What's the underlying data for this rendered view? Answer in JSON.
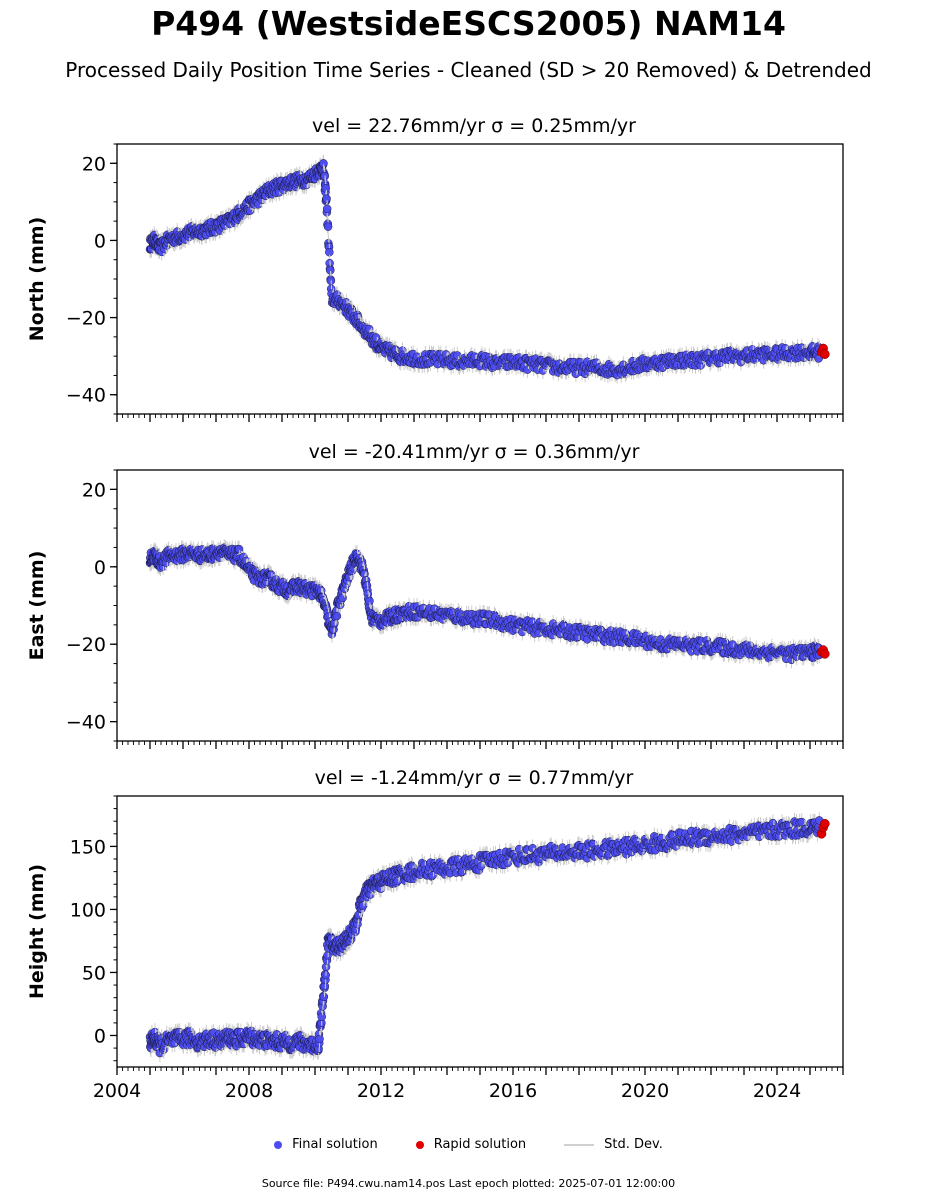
{
  "figure": {
    "title": "P494 (WestsideESCS2005) NAM14",
    "subtitle": "Processed Daily Position Time Series - Cleaned (SD > 20 Removed) & Detrended",
    "footer": "Source file: P494.cwu.nam14.pos  Last epoch plotted: 2025-07-01 12:00:00"
  },
  "legend": {
    "final_label": "Final solution",
    "rapid_label": "Rapid solution",
    "std_label": "Std. Dev."
  },
  "colors": {
    "final": "#4b4bf0",
    "final_edge": "#1a1a40",
    "rapid": "#e00000",
    "std": "#cccccc"
  },
  "chart_data": [
    {
      "type": "scatter",
      "panel": "north",
      "title": "vel = 22.76mm/yr   σ = 0.25mm/yr",
      "vel_text": "vel = 22.76mm/yr",
      "sigma_text": "σ = 0.25mm/yr",
      "ylabel": "North (mm)",
      "xlabel": "",
      "xlim": [
        2004.0,
        2026.0
      ],
      "ylim": [
        -45,
        25
      ],
      "yticks": [
        20,
        0,
        -20,
        -40
      ],
      "ytick_labels": [
        "20",
        "0",
        "−20",
        "−40"
      ],
      "xticks": [
        2004,
        2008,
        2012,
        2016,
        2020,
        2024
      ],
      "xtick_labels": [],
      "series": [
        {
          "name": "Final solution",
          "x": [
            2005.0,
            2005.15,
            2005.3,
            2005.6,
            2005.9,
            2006.2,
            2006.5,
            2006.8,
            2007.1,
            2007.4,
            2007.7,
            2008.0,
            2008.3,
            2008.6,
            2008.9,
            2009.2,
            2009.5,
            2009.8,
            2010.1,
            2010.25,
            2010.35,
            2010.5,
            2010.8,
            2011.1,
            2011.4,
            2011.7,
            2012.0,
            2012.3,
            2012.6,
            2013.0,
            2013.5,
            2014.0,
            2014.5,
            2015.0,
            2015.5,
            2016.0,
            2016.5,
            2017.0,
            2017.5,
            2018.0,
            2018.5,
            2019.0,
            2019.5,
            2020.0,
            2020.5,
            2021.0,
            2021.5,
            2022.0,
            2022.5,
            2023.0,
            2023.5,
            2024.0,
            2024.5,
            2025.0,
            2025.3
          ],
          "y": [
            -1,
            0,
            -2,
            0.5,
            1,
            2,
            2.5,
            3,
            4,
            5,
            7,
            9,
            11,
            13,
            14,
            15,
            15.5,
            16,
            18,
            19,
            10,
            -15,
            -16,
            -19,
            -22,
            -25,
            -28,
            -29,
            -30,
            -30.5,
            -31,
            -31,
            -31.5,
            -31,
            -32,
            -31.5,
            -32,
            -32.5,
            -33,
            -33,
            -33,
            -33.5,
            -33,
            -32,
            -31.5,
            -31,
            -31,
            -30.5,
            -30,
            -30,
            -29.5,
            -29.5,
            -29,
            -29,
            -29
          ]
        },
        {
          "name": "Rapid solution",
          "x": [
            2025.35,
            2025.4,
            2025.45
          ],
          "y": [
            -29,
            -28,
            -29.5
          ]
        }
      ]
    },
    {
      "type": "scatter",
      "panel": "east",
      "title": "vel = -20.41mm/yr   σ = 0.36mm/yr",
      "vel_text": "vel = -20.41mm/yr",
      "sigma_text": "σ = 0.36mm/yr",
      "ylabel": "East (mm)",
      "xlabel": "",
      "xlim": [
        2004.0,
        2026.0
      ],
      "ylim": [
        -45,
        25
      ],
      "yticks": [
        20,
        0,
        -20,
        -40
      ],
      "ytick_labels": [
        "20",
        "0",
        "−20",
        "−40"
      ],
      "xticks": [
        2004,
        2008,
        2012,
        2016,
        2020,
        2024
      ],
      "xtick_labels": [],
      "series": [
        {
          "name": "Final solution",
          "x": [
            2005.0,
            2005.15,
            2005.3,
            2005.6,
            2005.9,
            2006.2,
            2006.5,
            2006.8,
            2007.1,
            2007.4,
            2007.7,
            2008.0,
            2008.3,
            2008.6,
            2008.9,
            2009.2,
            2009.5,
            2009.8,
            2010.1,
            2010.3,
            2010.5,
            2010.7,
            2010.9,
            2011.1,
            2011.3,
            2011.5,
            2011.7,
            2012.0,
            2012.3,
            2012.6,
            2013.0,
            2013.5,
            2014.0,
            2014.5,
            2015.0,
            2015.5,
            2016.0,
            2016.5,
            2017.0,
            2017.5,
            2018.0,
            2018.5,
            2019.0,
            2019.5,
            2020.0,
            2020.5,
            2021.0,
            2021.5,
            2022.0,
            2022.5,
            2023.0,
            2023.5,
            2024.0,
            2024.5,
            2025.0,
            2025.3
          ],
          "y": [
            2,
            3,
            1,
            3,
            3,
            3.5,
            3,
            3,
            4,
            3,
            3,
            -1,
            -3,
            -3,
            -5,
            -6,
            -5,
            -6,
            -6,
            -10,
            -17,
            -10,
            -5,
            0,
            3,
            -2,
            -13,
            -14,
            -13,
            -12,
            -11.5,
            -12,
            -12.5,
            -13,
            -13.5,
            -14,
            -15,
            -15.5,
            -16,
            -16.5,
            -17,
            -17.5,
            -18,
            -18.5,
            -19,
            -20,
            -20,
            -20.5,
            -20.5,
            -21,
            -21.5,
            -22,
            -22,
            -22.5,
            -22,
            -22
          ]
        },
        {
          "name": "Rapid solution",
          "x": [
            2025.35,
            2025.4,
            2025.45
          ],
          "y": [
            -22,
            -21.5,
            -22.5
          ]
        }
      ]
    },
    {
      "type": "scatter",
      "panel": "height",
      "title": "vel = -1.24mm/yr   σ = 0.77mm/yr",
      "vel_text": "vel = -1.24mm/yr",
      "sigma_text": "σ = 0.77mm/yr",
      "ylabel": "Height (mm)",
      "xlabel": "",
      "xlim": [
        2004.0,
        2026.0
      ],
      "ylim": [
        -25,
        190
      ],
      "yticks": [
        150,
        100,
        50,
        0
      ],
      "ytick_labels": [
        "150",
        "100",
        "50",
        "0"
      ],
      "xticks": [
        2004,
        2008,
        2012,
        2016,
        2020,
        2024
      ],
      "xtick_labels": [
        "2004",
        "2008",
        "2012",
        "2016",
        "2020",
        "2024"
      ],
      "series": [
        {
          "name": "Final solution",
          "x": [
            2005.0,
            2005.15,
            2005.3,
            2005.6,
            2005.9,
            2006.2,
            2006.5,
            2006.8,
            2007.1,
            2007.4,
            2007.7,
            2008.0,
            2008.3,
            2008.6,
            2008.9,
            2009.2,
            2009.5,
            2009.8,
            2010.1,
            2010.25,
            2010.4,
            2010.6,
            2010.8,
            2011.0,
            2011.2,
            2011.4,
            2011.6,
            2011.8,
            2012.0,
            2012.3,
            2012.6,
            2013.0,
            2013.5,
            2014.0,
            2014.5,
            2015.0,
            2015.5,
            2016.0,
            2016.5,
            2017.0,
            2017.5,
            2018.0,
            2018.5,
            2019.0,
            2019.5,
            2020.0,
            2020.5,
            2021.0,
            2021.5,
            2022.0,
            2022.5,
            2023.0,
            2023.5,
            2024.0,
            2024.5,
            2025.0,
            2025.3
          ],
          "y": [
            -5,
            -3,
            -8,
            -4,
            -3,
            -2,
            -5,
            -3,
            -4,
            -2,
            -3,
            -1,
            -3,
            -4,
            -5,
            -6,
            -5,
            -7,
            -8,
            30,
            75,
            70,
            72,
            78,
            85,
            105,
            115,
            120,
            122,
            125,
            128,
            130,
            132,
            133,
            135,
            137,
            140,
            142,
            143,
            144,
            145,
            146,
            147,
            148,
            150,
            151,
            153,
            155,
            157,
            158,
            159,
            160,
            161,
            163,
            164,
            165,
            165
          ]
        },
        {
          "name": "Rapid solution",
          "x": [
            2025.35,
            2025.4,
            2025.45
          ],
          "y": [
            160,
            165,
            168
          ]
        }
      ]
    }
  ]
}
